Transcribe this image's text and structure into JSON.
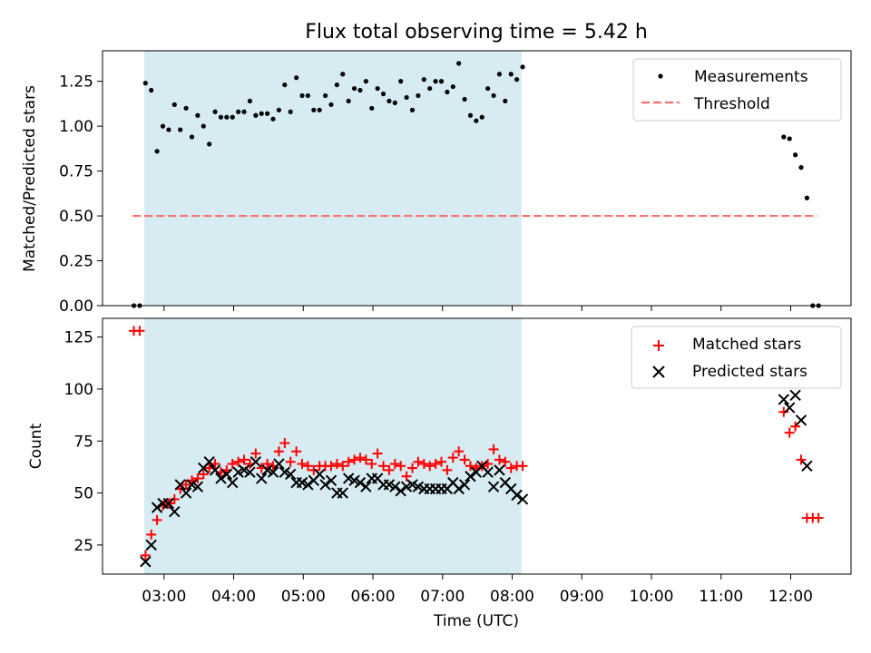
{
  "chart_data": [
    {
      "type": "scatter",
      "title": "Flux total observing time = 5.42 h",
      "xlabel": "",
      "ylabel": "Matched/Predicted stars",
      "ylim": [
        0,
        1.42
      ],
      "yticks": [
        "0.00",
        "0.25",
        "0.50",
        "0.75",
        "1.00",
        "1.25"
      ],
      "shaded_interval": [
        "02:43",
        "08:08"
      ],
      "shaded_color": "#add8e6",
      "legend_position": "upper right",
      "series": [
        {
          "name": "Measurements",
          "marker": "dot",
          "color": "#000000",
          "points": [
            [
              "02:34",
              0.0
            ],
            [
              "02:39",
              0.0
            ],
            [
              "02:44",
              1.24
            ],
            [
              "02:49",
              1.2
            ],
            [
              "02:54",
              0.86
            ],
            [
              "02:59",
              1.0
            ],
            [
              "03:04",
              0.98
            ],
            [
              "03:09",
              1.12
            ],
            [
              "03:14",
              0.98
            ],
            [
              "03:19",
              1.1
            ],
            [
              "03:24",
              0.94
            ],
            [
              "03:29",
              1.06
            ],
            [
              "03:34",
              1.0
            ],
            [
              "03:39",
              0.9
            ],
            [
              "03:44",
              1.08
            ],
            [
              "03:49",
              1.05
            ],
            [
              "03:54",
              1.05
            ],
            [
              "03:59",
              1.05
            ],
            [
              "04:04",
              1.08
            ],
            [
              "04:09",
              1.08
            ],
            [
              "04:14",
              1.14
            ],
            [
              "04:19",
              1.06
            ],
            [
              "04:24",
              1.07
            ],
            [
              "04:29",
              1.07
            ],
            [
              "04:34",
              1.04
            ],
            [
              "04:39",
              1.09
            ],
            [
              "04:44",
              1.23
            ],
            [
              "04:49",
              1.08
            ],
            [
              "04:54",
              1.27
            ],
            [
              "04:59",
              1.17
            ],
            [
              "05:04",
              1.17
            ],
            [
              "05:09",
              1.09
            ],
            [
              "05:14",
              1.09
            ],
            [
              "05:19",
              1.17
            ],
            [
              "05:24",
              1.12
            ],
            [
              "05:29",
              1.23
            ],
            [
              "05:34",
              1.29
            ],
            [
              "05:39",
              1.14
            ],
            [
              "05:44",
              1.21
            ],
            [
              "05:49",
              1.2
            ],
            [
              "05:54",
              1.25
            ],
            [
              "05:59",
              1.1
            ],
            [
              "06:04",
              1.21
            ],
            [
              "06:09",
              1.18
            ],
            [
              "06:14",
              1.14
            ],
            [
              "06:19",
              1.13
            ],
            [
              "06:24",
              1.25
            ],
            [
              "06:29",
              1.16
            ],
            [
              "06:34",
              1.09
            ],
            [
              "06:39",
              1.17
            ],
            [
              "06:44",
              1.26
            ],
            [
              "06:49",
              1.21
            ],
            [
              "06:54",
              1.25
            ],
            [
              "06:59",
              1.25
            ],
            [
              "07:04",
              1.19
            ],
            [
              "07:09",
              1.22
            ],
            [
              "07:14",
              1.35
            ],
            [
              "07:19",
              1.15
            ],
            [
              "07:24",
              1.06
            ],
            [
              "07:29",
              1.03
            ],
            [
              "07:34",
              1.05
            ],
            [
              "07:39",
              1.21
            ],
            [
              "07:44",
              1.17
            ],
            [
              "07:49",
              1.29
            ],
            [
              "07:54",
              1.14
            ],
            [
              "07:59",
              1.29
            ],
            [
              "08:04",
              1.26
            ],
            [
              "08:09",
              1.33
            ],
            [
              "11:54",
              0.94
            ],
            [
              "11:59",
              0.93
            ],
            [
              "12:04",
              0.84
            ],
            [
              "12:09",
              0.77
            ],
            [
              "12:14",
              0.6
            ],
            [
              "12:19",
              0.0
            ],
            [
              "12:24",
              0.0
            ]
          ]
        },
        {
          "name": "Threshold",
          "marker": "dashed-line",
          "color": "#ff6f6f",
          "points": [
            [
              "02:33",
              0.5
            ],
            [
              "12:23",
              0.5
            ]
          ]
        }
      ]
    },
    {
      "type": "scatter",
      "title": "",
      "xlabel": "Time (UTC)",
      "ylabel": "Count",
      "ylim": [
        11,
        134
      ],
      "yticks": [
        "25",
        "50",
        "75",
        "100",
        "125"
      ],
      "xlim": [
        "02:07",
        "12:52"
      ],
      "xticks": [
        "03:00",
        "04:00",
        "05:00",
        "06:00",
        "07:00",
        "08:00",
        "09:00",
        "10:00",
        "11:00",
        "12:00"
      ],
      "shaded_interval": [
        "02:43",
        "08:08"
      ],
      "shaded_color": "#add8e6",
      "legend_position": "upper right",
      "series": [
        {
          "name": "Matched stars",
          "marker": "plus",
          "color": "#ff0000",
          "points": [
            [
              "02:34",
              128
            ],
            [
              "02:39",
              128
            ],
            [
              "02:44",
              20
            ],
            [
              "02:49",
              30
            ],
            [
              "02:54",
              37
            ],
            [
              "02:59",
              44
            ],
            [
              "03:04",
              45
            ],
            [
              "03:09",
              47
            ],
            [
              "03:14",
              52
            ],
            [
              "03:19",
              54
            ],
            [
              "03:24",
              56
            ],
            [
              "03:29",
              57
            ],
            [
              "03:34",
              59
            ],
            [
              "03:39",
              62
            ],
            [
              "03:44",
              64
            ],
            [
              "03:49",
              60
            ],
            [
              "03:54",
              61
            ],
            [
              "03:59",
              64
            ],
            [
              "04:04",
              65
            ],
            [
              "04:09",
              66
            ],
            [
              "04:14",
              64
            ],
            [
              "04:19",
              69
            ],
            [
              "04:24",
              62
            ],
            [
              "04:29",
              64
            ],
            [
              "04:34",
              63
            ],
            [
              "04:39",
              70
            ],
            [
              "04:44",
              74
            ],
            [
              "04:49",
              65
            ],
            [
              "04:54",
              70
            ],
            [
              "04:59",
              64
            ],
            [
              "05:04",
              63
            ],
            [
              "05:09",
              61
            ],
            [
              "05:14",
              63
            ],
            [
              "05:19",
              63
            ],
            [
              "05:24",
              63
            ],
            [
              "05:29",
              64
            ],
            [
              "05:34",
              63
            ],
            [
              "05:39",
              65
            ],
            [
              "05:44",
              66
            ],
            [
              "05:49",
              67
            ],
            [
              "05:54",
              66
            ],
            [
              "05:59",
              64
            ],
            [
              "06:04",
              69
            ],
            [
              "06:09",
              63
            ],
            [
              "06:14",
              61
            ],
            [
              "06:19",
              64
            ],
            [
              "06:24",
              63
            ],
            [
              "06:29",
              58
            ],
            [
              "06:34",
              62
            ],
            [
              "06:39",
              65
            ],
            [
              "06:44",
              64
            ],
            [
              "06:49",
              63
            ],
            [
              "06:54",
              64
            ],
            [
              "06:59",
              65
            ],
            [
              "07:04",
              61
            ],
            [
              "07:09",
              67
            ],
            [
              "07:14",
              70
            ],
            [
              "07:19",
              66
            ],
            [
              "07:24",
              63
            ],
            [
              "07:29",
              62
            ],
            [
              "07:34",
              63
            ],
            [
              "07:39",
              64
            ],
            [
              "07:44",
              71
            ],
            [
              "07:49",
              66
            ],
            [
              "07:54",
              65
            ],
            [
              "07:59",
              62
            ],
            [
              "08:04",
              63
            ],
            [
              "08:09",
              63
            ],
            [
              "11:54",
              89
            ],
            [
              "11:59",
              79
            ],
            [
              "12:04",
              82
            ],
            [
              "12:09",
              66
            ],
            [
              "12:14",
              38
            ],
            [
              "12:19",
              38
            ],
            [
              "12:24",
              38
            ]
          ]
        },
        {
          "name": "Predicted stars",
          "marker": "x",
          "color": "#000000",
          "points": [
            [
              "02:44",
              17
            ],
            [
              "02:49",
              25
            ],
            [
              "02:54",
              43
            ],
            [
              "02:59",
              45
            ],
            [
              "03:04",
              45
            ],
            [
              "03:09",
              41
            ],
            [
              "03:14",
              54
            ],
            [
              "03:19",
              50
            ],
            [
              "03:24",
              54
            ],
            [
              "03:29",
              53
            ],
            [
              "03:34",
              62
            ],
            [
              "03:39",
              65
            ],
            [
              "03:44",
              61
            ],
            [
              "03:49",
              57
            ],
            [
              "03:54",
              59
            ],
            [
              "03:59",
              55
            ],
            [
              "04:04",
              60
            ],
            [
              "04:09",
              61
            ],
            [
              "04:14",
              60
            ],
            [
              "04:19",
              65
            ],
            [
              "04:24",
              57
            ],
            [
              "04:29",
              61
            ],
            [
              "04:34",
              60
            ],
            [
              "04:39",
              64
            ],
            [
              "04:44",
              60
            ],
            [
              "04:49",
              59
            ],
            [
              "04:54",
              55
            ],
            [
              "04:59",
              55
            ],
            [
              "05:04",
              54
            ],
            [
              "05:09",
              56
            ],
            [
              "05:14",
              59
            ],
            [
              "05:19",
              54
            ],
            [
              "05:24",
              56
            ],
            [
              "05:29",
              50
            ],
            [
              "05:34",
              50
            ],
            [
              "05:39",
              57
            ],
            [
              "05:44",
              56
            ],
            [
              "05:49",
              55
            ],
            [
              "05:54",
              53
            ],
            [
              "05:59",
              57
            ],
            [
              "06:04",
              57
            ],
            [
              "06:09",
              54
            ],
            [
              "06:14",
              54
            ],
            [
              "06:19",
              53
            ],
            [
              "06:24",
              51
            ],
            [
              "06:29",
              53
            ],
            [
              "06:34",
              54
            ],
            [
              "06:39",
              53
            ],
            [
              "06:44",
              52
            ],
            [
              "06:49",
              52
            ],
            [
              "06:54",
              52
            ],
            [
              "06:59",
              52
            ],
            [
              "07:04",
              52
            ],
            [
              "07:09",
              55
            ],
            [
              "07:14",
              52
            ],
            [
              "07:19",
              54
            ],
            [
              "07:24",
              58
            ],
            [
              "07:29",
              60
            ],
            [
              "07:34",
              63
            ],
            [
              "07:39",
              60
            ],
            [
              "07:44",
              53
            ],
            [
              "07:49",
              61
            ],
            [
              "07:54",
              55
            ],
            [
              "07:59",
              52
            ],
            [
              "08:04",
              49
            ],
            [
              "08:09",
              47
            ],
            [
              "11:54",
              95
            ],
            [
              "11:59",
              91
            ],
            [
              "12:04",
              97
            ],
            [
              "12:09",
              85
            ],
            [
              "12:14",
              63
            ]
          ]
        }
      ]
    }
  ]
}
